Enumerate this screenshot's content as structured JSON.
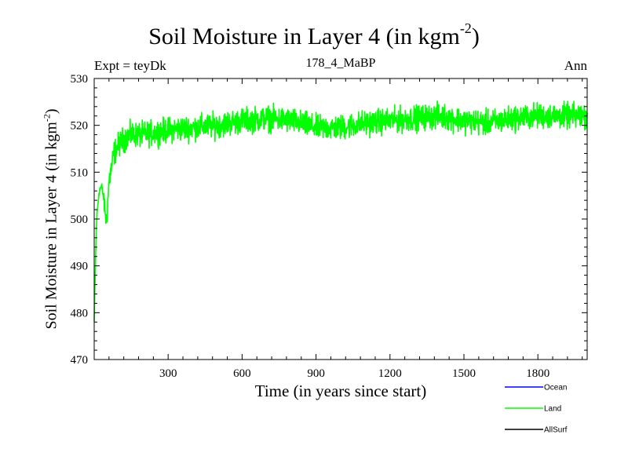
{
  "chart_data": {
    "type": "line",
    "title": "Soil Moisture in Layer 4 (in kgm",
    "title_superscript": "-2",
    "title_suffix": ")",
    "expt_label": "Expt = teyDk",
    "subtitle": "178_4_MaBP",
    "season": "Ann",
    "xlabel": "Time (in years since start)",
    "ylabel": "Soil Moisture in Layer 4 (in kgm",
    "ylabel_superscript": "-2",
    "ylabel_suffix": ")",
    "xlim": [
      0,
      2000
    ],
    "ylim": [
      470,
      530
    ],
    "x_ticks": [
      300,
      600,
      900,
      1200,
      1500,
      1800
    ],
    "y_ticks": [
      470,
      480,
      490,
      500,
      510,
      520,
      530
    ],
    "legend": [
      {
        "name": "Ocean",
        "color": "#0000ff"
      },
      {
        "name": "Land",
        "color": "#00ff00"
      },
      {
        "name": "AllSurf",
        "color": "#000000"
      }
    ],
    "series": [
      {
        "name": "Land",
        "color": "#00ff00",
        "noise_amplitude": 2.6,
        "x": [
          0,
          5,
          10,
          20,
          30,
          40,
          50,
          60,
          70,
          80,
          100,
          120,
          150,
          200,
          300,
          400,
          500,
          600,
          700,
          800,
          900,
          1000,
          1100,
          1200,
          1300,
          1400,
          1500,
          1600,
          1700,
          1800,
          1900,
          2000
        ],
        "values": [
          478,
          490,
          500,
          506,
          507,
          504,
          499,
          508,
          511,
          514,
          516,
          517,
          518,
          518,
          519,
          519.5,
          520,
          521,
          521.5,
          521,
          519.5,
          519.5,
          520.5,
          521,
          521.5,
          522,
          521,
          520.5,
          521.5,
          522,
          522,
          522
        ]
      }
    ]
  }
}
